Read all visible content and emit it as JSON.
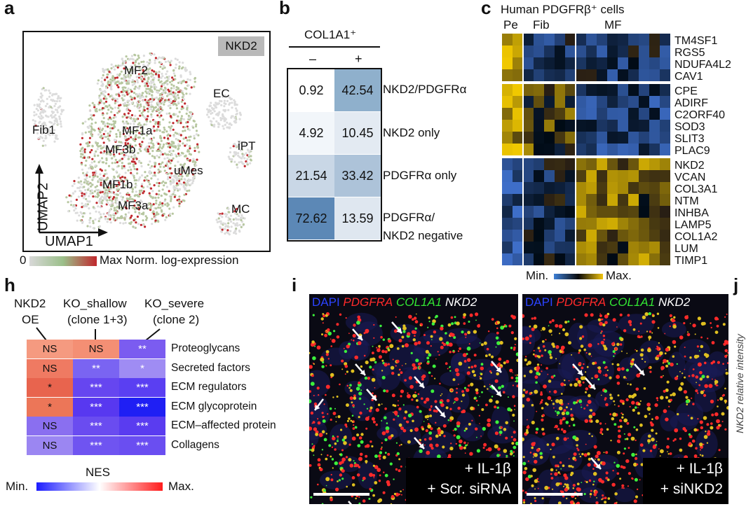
{
  "panels": {
    "a": "a",
    "b": "b",
    "c": "c",
    "h": "h",
    "i": "i",
    "j": "j"
  },
  "panel_a": {
    "tag": "NKD2",
    "clusters": [
      "MF2",
      "EC",
      "Fib1",
      "MF1a",
      "MF3b",
      "iPT",
      "uMes",
      "MF1b",
      "MF3a",
      "MC"
    ],
    "axis_y": "UMAP2",
    "axis_x": "UMAP1",
    "legend_min": "0",
    "legend_max": "Max Norm. log-expression",
    "colors": {
      "low": "#b7c7a0",
      "high": "#c0282d",
      "background": "#dcdcdc"
    }
  },
  "panel_b": {
    "header": "COL1A1⁺",
    "col_neg": "–",
    "col_pos": "+",
    "rows": [
      {
        "label": "NKD2/PDGFRα",
        "neg": "0.92",
        "pos": "42.54",
        "neg_color": "#ffffff",
        "pos_color": "#8fb0cc"
      },
      {
        "label": "NKD2 only",
        "neg": "4.92",
        "pos": "10.45",
        "neg_color": "#f2f6fa",
        "pos_color": "#e3eaf2"
      },
      {
        "label": "PDGFRα only",
        "neg": "21.54",
        "pos": "33.42",
        "neg_color": "#c9d7e6",
        "pos_color": "#adc3d9"
      },
      {
        "label": "PDGFRα/",
        "label2": "NKD2 negative",
        "neg": "72.62",
        "pos": "13.59",
        "neg_color": "#5c88b6",
        "pos_color": "#dfe7f0"
      }
    ]
  },
  "panel_c": {
    "title": "Human PDGFRβ⁺ cells",
    "groups": [
      "Pe",
      "Fib",
      "MF"
    ],
    "genes": [
      "TM4SF1",
      "RGS5",
      "NDUFA4L2",
      "CAV1",
      "CPE",
      "ADIRF",
      "C2ORF40",
      "SOD3",
      "SLIT3",
      "PLAC9",
      "NKD2",
      "VCAN",
      "COL3A1",
      "NTM",
      "INHBA",
      "LAMP5",
      "COL1A2",
      "LUM",
      "TIMP1"
    ],
    "legend_min": "Min.",
    "legend_max": "Max."
  },
  "panel_h": {
    "columns": [
      {
        "line1": "NKD2",
        "line2": "OE"
      },
      {
        "line1": "KO_shallow",
        "line2": "(clone 1+3)"
      },
      {
        "line1": "KO_severe",
        "line2": "(clone 2)"
      }
    ],
    "rows": [
      {
        "label": "Proteoglycans",
        "cells": [
          {
            "text": "NS",
            "color": "#f59a80"
          },
          {
            "text": "NS",
            "color": "#f48f74"
          },
          {
            "text": "**",
            "color": "#7b5cf0"
          }
        ]
      },
      {
        "label": "Secreted factors",
        "cells": [
          {
            "text": "NS",
            "color": "#ef7a62"
          },
          {
            "text": "**",
            "color": "#7a64f2"
          },
          {
            "text": "*",
            "color": "#9f8cf3"
          }
        ]
      },
      {
        "label": "ECM regulators",
        "cells": [
          {
            "text": "*",
            "color": "#e8644e"
          },
          {
            "text": "***",
            "color": "#6646f0"
          },
          {
            "text": "***",
            "color": "#5a3ff2"
          }
        ]
      },
      {
        "label": "ECM glycoprotein",
        "cells": [
          {
            "text": "*",
            "color": "#ec7658"
          },
          {
            "text": "***",
            "color": "#5838f0"
          },
          {
            "text": "***",
            "color": "#1f1ff4"
          }
        ]
      },
      {
        "label": "ECM–affected protein",
        "cells": [
          {
            "text": "NS",
            "color": "#8a6ff0"
          },
          {
            "text": "***",
            "color": "#6a4cf0"
          },
          {
            "text": "***",
            "color": "#5a3cf0"
          }
        ]
      },
      {
        "label": "Collagens",
        "cells": [
          {
            "text": "NS",
            "color": "#9b86f2"
          },
          {
            "text": "***",
            "color": "#6f54f1"
          },
          {
            "text": "***",
            "color": "#6a4ef1"
          }
        ]
      }
    ],
    "legend_title": "NES",
    "legend_min": "Min.",
    "legend_max": "Max."
  },
  "panel_i": {
    "left": {
      "legend": [
        {
          "text": "DAPI",
          "color": "#2b43ff"
        },
        {
          "text": "PDGFRA",
          "color": "#ff2a2a"
        },
        {
          "text": "COL1A1",
          "color": "#33e633"
        },
        {
          "text": "NKD2",
          "color": "#ffffff"
        }
      ],
      "condition1": "+ IL-1β",
      "condition2": "+ Scr. siRNA"
    },
    "right": {
      "legend": [
        {
          "text": "DAPI",
          "color": "#2b43ff"
        },
        {
          "text": "PDGFRA",
          "color": "#ff2a2a"
        },
        {
          "text": "COL1A1",
          "color": "#33e633"
        },
        {
          "text": "NKD2",
          "color": "#ffffff"
        }
      ],
      "condition1": "+ IL-1β",
      "condition2": "+ siNKD2"
    }
  },
  "panel_j": {
    "ylabel": "NKD2 relative intensity"
  }
}
